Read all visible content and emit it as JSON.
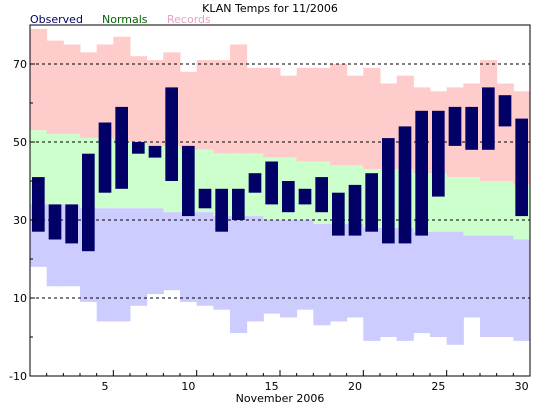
{
  "chart_data": {
    "type": "bar",
    "title": "KLAN Temps for 11/2006",
    "xlabel": "November 2006",
    "ylabel": "",
    "ylim": [
      -10,
      80
    ],
    "xlim": [
      1,
      30
    ],
    "yticks": [
      -10,
      10,
      30,
      50,
      70
    ],
    "xticks": [
      5,
      10,
      15,
      20,
      25,
      30
    ],
    "grid_y": [
      10,
      30,
      50,
      70
    ],
    "legend": [
      {
        "name": "Observed",
        "color": "#000066"
      },
      {
        "name": "Normals",
        "color": "#006600"
      },
      {
        "name": "Records",
        "color": "#e8a0c8"
      }
    ],
    "colors": {
      "observed": "#000066",
      "normals_band": "#ccffcc",
      "record_high_band": "#ffcccc",
      "record_low_band": "#ccccff"
    },
    "days": [
      1,
      2,
      3,
      4,
      5,
      6,
      7,
      8,
      9,
      10,
      11,
      12,
      13,
      14,
      15,
      16,
      17,
      18,
      19,
      20,
      21,
      22,
      23,
      24,
      25,
      26,
      27,
      28,
      29,
      30
    ],
    "record_high": [
      79,
      76,
      75,
      73,
      75,
      77,
      72,
      71,
      73,
      68,
      71,
      71,
      75,
      69,
      69,
      67,
      69,
      69,
      70,
      67,
      69,
      65,
      67,
      64,
      63,
      64,
      65,
      71,
      65,
      63
    ],
    "normal_high": [
      53,
      52,
      52,
      51,
      51,
      50,
      50,
      49,
      49,
      48,
      48,
      47,
      47,
      47,
      46,
      46,
      45,
      45,
      44,
      44,
      43,
      43,
      43,
      42,
      42,
      41,
      41,
      40,
      40,
      39
    ],
    "normal_low": [
      34,
      34,
      34,
      33,
      33,
      33,
      33,
      33,
      32,
      32,
      32,
      31,
      31,
      31,
      30,
      30,
      30,
      29,
      29,
      29,
      28,
      28,
      28,
      27,
      27,
      27,
      26,
      26,
      26,
      25
    ],
    "record_low": [
      18,
      13,
      13,
      9,
      4,
      4,
      8,
      11,
      12,
      9,
      8,
      7,
      1,
      4,
      6,
      5,
      7,
      3,
      4,
      5,
      -1,
      0,
      -1,
      1,
      0,
      -2,
      5,
      0,
      0,
      -1
    ],
    "observed_high": [
      41,
      34,
      34,
      47,
      55,
      59,
      50,
      49,
      64,
      49,
      38,
      38,
      38,
      42,
      45,
      40,
      38,
      41,
      37,
      39,
      42,
      51,
      54,
      58,
      58,
      59,
      59,
      64,
      62,
      56
    ],
    "observed_low": [
      27,
      25,
      24,
      22,
      37,
      38,
      47,
      46,
      40,
      31,
      33,
      27,
      30,
      37,
      34,
      32,
      34,
      32,
      26,
      26,
      27,
      24,
      24,
      26,
      36,
      49,
      48,
      48,
      54,
      31
    ]
  }
}
